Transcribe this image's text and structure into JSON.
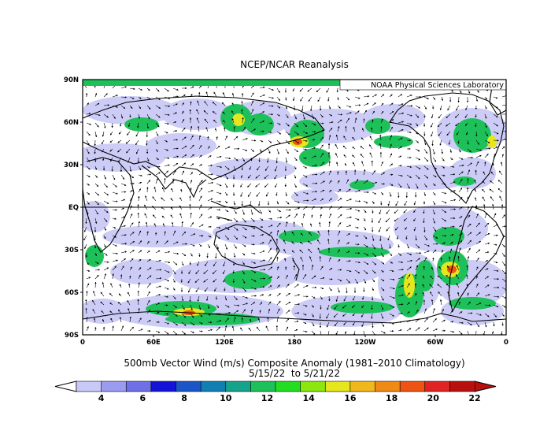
{
  "header": {
    "title": "NCEP/NCAR Reanalysis",
    "credit": "NOAA Physical Sciences Laboratory"
  },
  "map": {
    "lat_labels": [
      "90N",
      "60N",
      "30N",
      "EQ",
      "30S",
      "60S",
      "90S"
    ],
    "lon_labels": [
      "0",
      "60E",
      "120E",
      "180",
      "120W",
      "60W",
      "0"
    ]
  },
  "caption": {
    "line1": "500mb Vector Wind (m/s) Composite Anomaly (1981–2010 Climatology)",
    "line2": "5/15/22  to 5/21/22"
  },
  "colorbar": {
    "labels": [
      "4",
      "6",
      "8",
      "10",
      "12",
      "14",
      "16",
      "18",
      "20",
      "22"
    ],
    "colors": [
      "#c9c9f7",
      "#9b9bef",
      "#6f6fe6",
      "#1414d8",
      "#1b55c8",
      "#127fb3",
      "#16a38c",
      "#1ec05a",
      "#22dd22",
      "#8ee60f",
      "#e6e61e",
      "#f0b81c",
      "#f08a14",
      "#ee5314",
      "#e02323",
      "#b81010"
    ]
  },
  "colors": {
    "coast": "#000000",
    "vector": "#000000",
    "band_low": "#c9c9f7",
    "band_mid": "#1ec05a",
    "band_high": "#e6e61e",
    "band_peak": "#ee5314"
  }
}
